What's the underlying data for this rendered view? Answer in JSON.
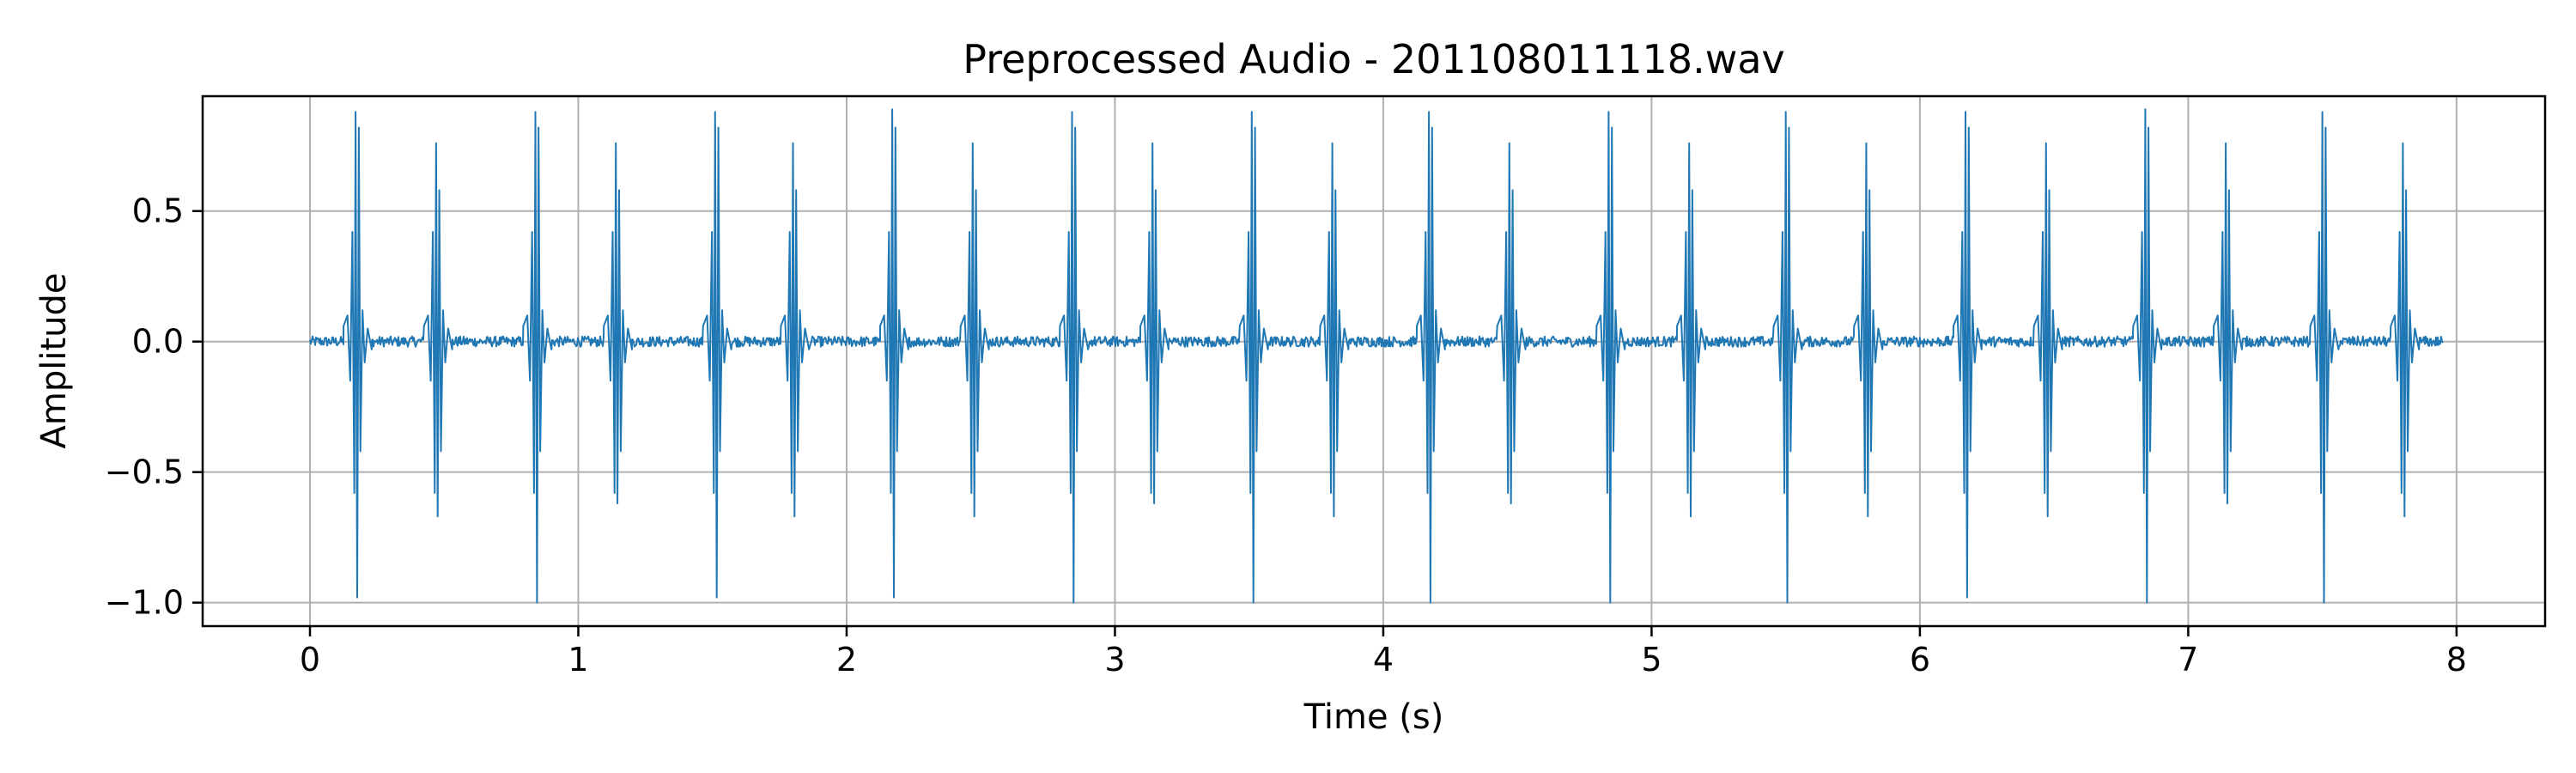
{
  "chart_data": {
    "type": "line",
    "title": "Preprocessed Audio - 201108011118.wav",
    "xlabel": "Time (s)",
    "ylabel": "Amplitude",
    "xlim": [
      -0.4,
      8.33
    ],
    "ylim": [
      -1.09,
      0.94
    ],
    "x_ticks": [
      0,
      1,
      2,
      3,
      4,
      5,
      6,
      7,
      8
    ],
    "x_tick_labels": [
      "0",
      "1",
      "2",
      "3",
      "4",
      "5",
      "6",
      "7",
      "8"
    ],
    "y_ticks": [
      -1.0,
      -0.5,
      0.0,
      0.5
    ],
    "y_tick_labels": [
      "−1.0",
      "−0.5",
      "0.0",
      "0.5"
    ],
    "grid": true,
    "line_color": "#1f77b4",
    "grid_color": "#b0b0b0",
    "series": [
      {
        "x_range": [
          0.0,
          7.95
        ],
        "baseline_noise_amplitude": 0.02,
        "beats": [
          {
            "s1_time": 0.17,
            "s1_peak": 0.88,
            "s1_trough": -0.98,
            "s2_time": 0.47,
            "s2_peak": 0.76,
            "s2_trough": -0.67
          },
          {
            "s1_time": 0.84,
            "s1_peak": 0.88,
            "s1_trough": -1.0,
            "s2_time": 1.14,
            "s2_peak": 0.76,
            "s2_trough": -0.62
          },
          {
            "s1_time": 1.51,
            "s1_peak": 0.88,
            "s1_trough": -0.98,
            "s2_time": 1.8,
            "s2_peak": 0.76,
            "s2_trough": -0.67
          },
          {
            "s1_time": 2.17,
            "s1_peak": 0.89,
            "s1_trough": -0.98,
            "s2_time": 2.47,
            "s2_peak": 0.76,
            "s2_trough": -0.67
          },
          {
            "s1_time": 2.84,
            "s1_peak": 0.88,
            "s1_trough": -1.0,
            "s2_time": 3.14,
            "s2_peak": 0.76,
            "s2_trough": -0.62
          },
          {
            "s1_time": 3.51,
            "s1_peak": 0.88,
            "s1_trough": -1.0,
            "s2_time": 3.81,
            "s2_peak": 0.76,
            "s2_trough": -0.67
          },
          {
            "s1_time": 4.17,
            "s1_peak": 0.88,
            "s1_trough": -1.0,
            "s2_time": 4.47,
            "s2_peak": 0.76,
            "s2_trough": -0.62
          },
          {
            "s1_time": 4.84,
            "s1_peak": 0.88,
            "s1_trough": -1.0,
            "s2_time": 5.14,
            "s2_peak": 0.76,
            "s2_trough": -0.67
          },
          {
            "s1_time": 5.5,
            "s1_peak": 0.88,
            "s1_trough": -1.0,
            "s2_time": 5.8,
            "s2_peak": 0.76,
            "s2_trough": -0.67
          },
          {
            "s1_time": 6.17,
            "s1_peak": 0.88,
            "s1_trough": -0.98,
            "s2_time": 6.47,
            "s2_peak": 0.76,
            "s2_trough": -0.67
          },
          {
            "s1_time": 6.84,
            "s1_peak": 0.89,
            "s1_trough": -1.0,
            "s2_time": 7.14,
            "s2_peak": 0.76,
            "s2_trough": -0.62
          },
          {
            "s1_time": 7.5,
            "s1_peak": 0.88,
            "s1_trough": -1.0,
            "s2_time": 7.8,
            "s2_peak": 0.76,
            "s2_trough": -0.67
          }
        ]
      }
    ]
  }
}
